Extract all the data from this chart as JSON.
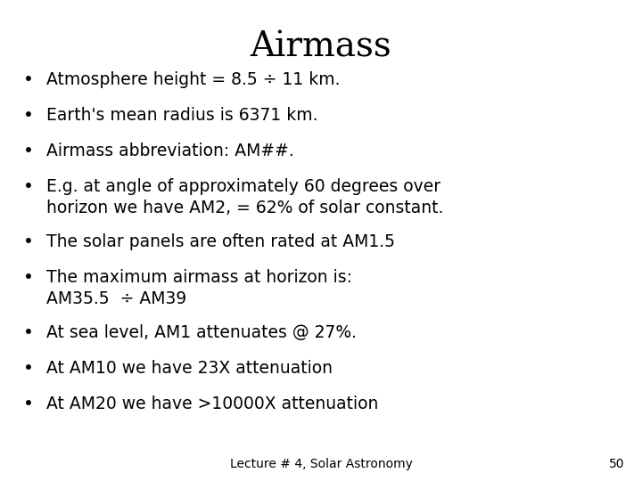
{
  "title": "Airmass",
  "title_fontsize": 28,
  "title_font": "DejaVu Serif",
  "bullet_font": "DejaVu Sans",
  "bullet_fontsize": 13.5,
  "footer_text": "Lecture # 4, Solar Astronomy",
  "footer_page": "50",
  "footer_fontsize": 10,
  "background_color": "#ffffff",
  "text_color": "#000000",
  "bullet_char": "•",
  "bullets": [
    {
      "text": "Atmosphere height = 8.5 ÷ 11 km.",
      "lines": 1
    },
    {
      "text": "Earth's mean radius is 6371 km.",
      "lines": 1
    },
    {
      "text": "Airmass abbreviation: AM##.",
      "lines": 1
    },
    {
      "text": "E.g. at angle of approximately 60 degrees over\nhorizon we have AM2, = 62% of solar constant.",
      "lines": 2
    },
    {
      "text": "The solar panels are often rated at AM1.5",
      "lines": 1
    },
    {
      "text": "The maximum airmass at horizon is:\nAM35.5  ÷ AM39",
      "lines": 2
    },
    {
      "text": "At sea level, AM1 attenuates @ 27%.",
      "lines": 1
    },
    {
      "text": "At AM10 we have 23X attenuation",
      "lines": 1
    },
    {
      "text": "At AM20 we have >10000X attenuation",
      "lines": 1
    }
  ]
}
